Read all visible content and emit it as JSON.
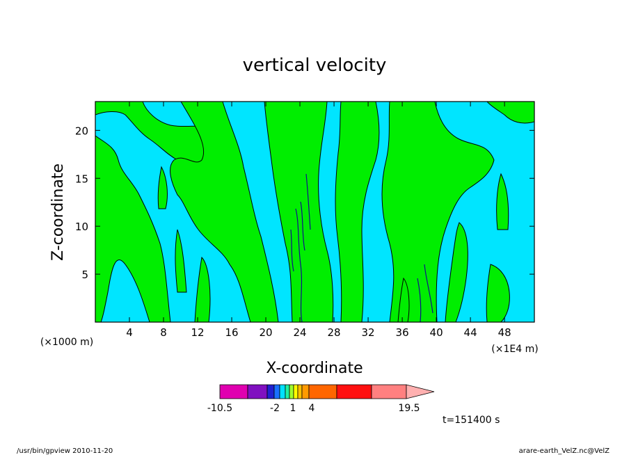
{
  "chart_data": {
    "type": "heatmap",
    "title": "vertical velocity",
    "xlabel": "X-coordinate",
    "ylabel": "Z-coordinate",
    "x_unit_left": "(×1000 m)",
    "x_unit_right": "(×1E4 m)",
    "xlim": [
      0,
      51.5
    ],
    "ylim": [
      0,
      23
    ],
    "x_ticks": [
      4,
      8,
      12,
      16,
      20,
      24,
      28,
      32,
      36,
      40,
      44,
      48
    ],
    "y_ticks": [
      5,
      10,
      15,
      20
    ],
    "time_label": "t=151400 s",
    "footer_left": "/usr/bin/gpview   2010-11-20",
    "footer_right": "arare-earth_VelZ.nc@VelZ",
    "colorbar": {
      "colors": [
        "#e000b0",
        "#8010c0",
        "#2020d0",
        "#1a70ff",
        "#00e0ff",
        "#20f0a0",
        "#a0ff30",
        "#ffff00",
        "#ffc000",
        "#ff9a00",
        "#ff6600",
        "#ff1010",
        "#ff8080",
        "#ffb0b0"
      ],
      "tick_labels": [
        "-10.5",
        "-2",
        "1",
        "4",
        "19.5"
      ],
      "tick_values": [
        -10.5,
        -2,
        1,
        4,
        19.5
      ]
    },
    "field": {
      "background_color": "#00e5ff",
      "positive_color": "#00ee00",
      "contour_color": "#000000",
      "green_regions": [
        {
          "x": [
            0,
            6
          ],
          "z": [
            0,
            20
          ]
        },
        {
          "x": [
            9,
            17
          ],
          "z": [
            3,
            23
          ]
        },
        {
          "x": [
            20,
            28
          ],
          "z": [
            0,
            23
          ]
        },
        {
          "x": [
            30,
            38
          ],
          "z": [
            0,
            23
          ]
        },
        {
          "x": [
            41,
            46
          ],
          "z": [
            0,
            23
          ]
        }
      ]
    }
  }
}
